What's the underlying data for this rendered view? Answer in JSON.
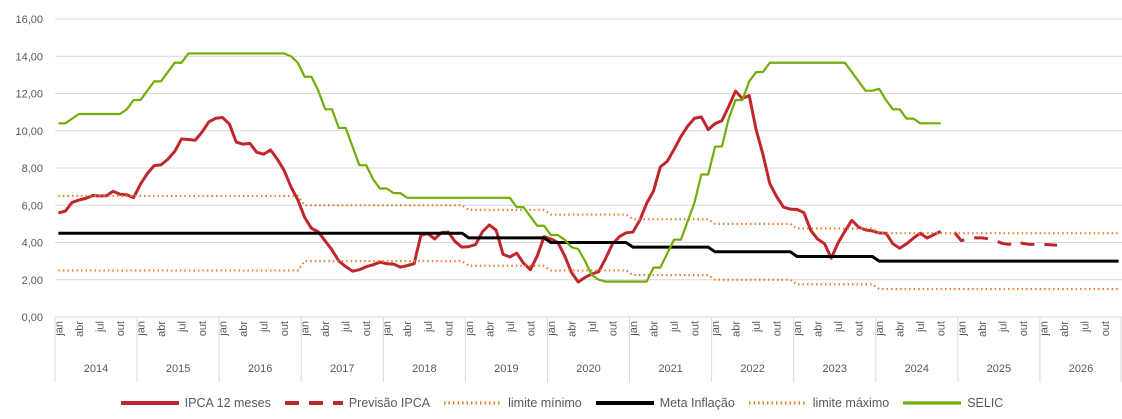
{
  "chart_data": {
    "type": "line",
    "categories": [
      "jan",
      null,
      null,
      "abr",
      null,
      null,
      "jul",
      null,
      null,
      "out",
      null,
      null,
      "jan",
      null,
      null,
      "abr",
      null,
      null,
      "jul",
      null,
      null,
      "out",
      null,
      null,
      "jan",
      null,
      null,
      "abr",
      null,
      null,
      "jul",
      null,
      null,
      "out",
      null,
      null,
      "jan",
      null,
      null,
      "abr",
      null,
      null,
      "jul",
      null,
      null,
      "out",
      null,
      null,
      "jan",
      null,
      null,
      "abr",
      null,
      null,
      "jul",
      null,
      null,
      "out",
      null,
      null,
      "jan",
      null,
      null,
      "abr",
      null,
      null,
      "jul",
      null,
      null,
      "out",
      null,
      null,
      "jan",
      null,
      null,
      "abr",
      null,
      null,
      "jul",
      null,
      null,
      "out",
      null,
      null,
      "jan",
      null,
      null,
      "abr",
      null,
      null,
      "jul",
      null,
      null,
      "out",
      null,
      null,
      "jan",
      null,
      null,
      "abr",
      null,
      null,
      "jul",
      null,
      null,
      "out",
      null,
      null,
      "jan",
      null,
      null,
      "abr",
      null,
      null,
      "jul",
      null,
      null,
      "out",
      null,
      null,
      "jan",
      null,
      null,
      "abr",
      null,
      null,
      "jul",
      null,
      null,
      "out",
      null,
      null,
      "jan",
      null,
      null,
      "abr",
      null,
      null,
      "jul",
      null,
      null,
      "out",
      null,
      null,
      "jan",
      null,
      null,
      "abr",
      null,
      null,
      "jul",
      null,
      null,
      "out",
      null,
      null
    ],
    "years": [
      "2014",
      "2015",
      "2016",
      "2017",
      "2018",
      "2019",
      "2020",
      "2021",
      "2022",
      "2023",
      "2024",
      "2025",
      "2026"
    ],
    "ylim": [
      0,
      16
    ],
    "yticks": [
      {
        "value": 0,
        "label": "0,00"
      },
      {
        "value": 2,
        "label": "2,00"
      },
      {
        "value": 4,
        "label": "4,00"
      },
      {
        "value": 6,
        "label": "6,00"
      },
      {
        "value": 8,
        "label": "8,00"
      },
      {
        "value": 10,
        "label": "10,00"
      },
      {
        "value": 12,
        "label": "12,00"
      },
      {
        "value": 14,
        "label": "14,00"
      },
      {
        "value": 16,
        "label": "16,00"
      }
    ],
    "grid": true,
    "legend": "bottom",
    "series": [
      {
        "name": "IPCA 12 meses",
        "color": "#c0262d",
        "dash": "solid",
        "values": [
          5.59,
          5.68,
          6.15,
          6.28,
          6.37,
          6.52,
          6.5,
          6.51,
          6.75,
          6.59,
          6.56,
          6.41,
          7.14,
          7.7,
          8.13,
          8.17,
          8.47,
          8.89,
          9.56,
          9.53,
          9.49,
          9.93,
          10.48,
          10.67,
          10.71,
          10.36,
          9.39,
          9.28,
          9.32,
          8.84,
          8.74,
          8.97,
          8.48,
          7.87,
          6.99,
          6.29,
          5.35,
          4.76,
          4.57,
          4.08,
          3.6,
          3.0,
          2.71,
          2.46,
          2.54,
          2.7,
          2.8,
          2.95,
          2.86,
          2.84,
          2.68,
          2.76,
          2.86,
          4.39,
          4.48,
          4.19,
          4.53,
          4.56,
          4.05,
          3.75,
          3.78,
          3.89,
          4.58,
          4.94,
          4.66,
          3.37,
          3.22,
          3.43,
          2.89,
          2.54,
          3.27,
          4.31,
          4.19,
          4.01,
          3.3,
          2.4,
          1.88,
          2.13,
          2.31,
          2.44,
          3.14,
          3.92,
          4.31,
          4.52,
          4.56,
          5.2,
          6.1,
          6.76,
          8.06,
          8.35,
          8.99,
          9.68,
          10.25,
          10.67,
          10.74,
          10.06,
          10.38,
          10.54,
          11.3,
          12.13,
          11.73,
          11.89,
          10.07,
          8.73,
          7.17,
          6.47,
          5.9,
          5.79,
          5.77,
          5.6,
          4.65,
          4.18,
          3.94,
          3.16,
          3.99,
          4.61,
          5.19,
          4.82,
          4.68,
          4.62,
          4.51,
          4.5,
          3.93,
          3.69,
          3.93,
          4.23,
          4.5,
          4.24,
          4.42,
          4.6,
          null,
          null,
          null,
          null,
          null,
          null,
          null,
          null,
          null,
          null,
          null,
          null,
          null,
          null,
          null,
          null,
          null,
          null,
          null,
          null,
          null,
          null,
          null,
          null,
          null,
          null
        ]
      },
      {
        "name": "Previsão IPCA",
        "color": "#c0262d",
        "dash": "dash",
        "values": [
          null,
          null,
          null,
          null,
          null,
          null,
          null,
          null,
          null,
          null,
          null,
          null,
          null,
          null,
          null,
          null,
          null,
          null,
          null,
          null,
          null,
          null,
          null,
          null,
          null,
          null,
          null,
          null,
          null,
          null,
          null,
          null,
          null,
          null,
          null,
          null,
          null,
          null,
          null,
          null,
          null,
          null,
          null,
          null,
          null,
          null,
          null,
          null,
          null,
          null,
          null,
          null,
          null,
          null,
          null,
          null,
          null,
          null,
          null,
          null,
          null,
          null,
          null,
          null,
          null,
          null,
          null,
          null,
          null,
          null,
          null,
          null,
          null,
          null,
          null,
          null,
          null,
          null,
          null,
          null,
          null,
          null,
          null,
          null,
          null,
          null,
          null,
          null,
          null,
          null,
          null,
          null,
          null,
          null,
          null,
          null,
          null,
          null,
          null,
          null,
          null,
          null,
          null,
          null,
          null,
          null,
          null,
          null,
          null,
          null,
          null,
          null,
          null,
          null,
          null,
          null,
          null,
          null,
          null,
          null,
          null,
          null,
          null,
          null,
          null,
          null,
          null,
          null,
          null,
          null,
          null,
          4.55,
          4.1,
          4.2,
          4.25,
          4.25,
          4.2,
          4.1,
          3.95,
          3.9,
          4.05,
          3.95,
          3.9,
          3.9,
          3.9,
          3.88,
          3.85,
          null,
          null,
          null,
          null,
          null,
          null,
          null,
          null,
          null
        ]
      },
      {
        "name": "limite mínimo",
        "color": "#ed7d31",
        "dash": "dot",
        "values": [
          2.5,
          2.5,
          2.5,
          2.5,
          2.5,
          2.5,
          2.5,
          2.5,
          2.5,
          2.5,
          2.5,
          2.5,
          2.5,
          2.5,
          2.5,
          2.5,
          2.5,
          2.5,
          2.5,
          2.5,
          2.5,
          2.5,
          2.5,
          2.5,
          2.5,
          2.5,
          2.5,
          2.5,
          2.5,
          2.5,
          2.5,
          2.5,
          2.5,
          2.5,
          2.5,
          2.5,
          3,
          3,
          3,
          3,
          3,
          3,
          3,
          3,
          3,
          3,
          3,
          3,
          3,
          3,
          3,
          3,
          3,
          3,
          3,
          3,
          3,
          3,
          3,
          3,
          2.75,
          2.75,
          2.75,
          2.75,
          2.75,
          2.75,
          2.75,
          2.75,
          2.75,
          2.75,
          2.75,
          2.75,
          2.5,
          2.5,
          2.5,
          2.5,
          2.5,
          2.5,
          2.5,
          2.5,
          2.5,
          2.5,
          2.5,
          2.5,
          2.25,
          2.25,
          2.25,
          2.25,
          2.25,
          2.25,
          2.25,
          2.25,
          2.25,
          2.25,
          2.25,
          2.25,
          2,
          2,
          2,
          2,
          2,
          2,
          2,
          2,
          2,
          2,
          2,
          2,
          1.75,
          1.75,
          1.75,
          1.75,
          1.75,
          1.75,
          1.75,
          1.75,
          1.75,
          1.75,
          1.75,
          1.75,
          1.5,
          1.5,
          1.5,
          1.5,
          1.5,
          1.5,
          1.5,
          1.5,
          1.5,
          1.5,
          1.5,
          1.5,
          1.5,
          1.5,
          1.5,
          1.5,
          1.5,
          1.5,
          1.5,
          1.5,
          1.5,
          1.5,
          1.5,
          1.5,
          1.5,
          1.5,
          1.5,
          1.5,
          1.5,
          1.5,
          1.5,
          1.5,
          1.5,
          1.5,
          1.5,
          1.5
        ]
      },
      {
        "name": "Meta Inflação",
        "color": "#000000",
        "dash": "solid",
        "values": [
          4.5,
          4.5,
          4.5,
          4.5,
          4.5,
          4.5,
          4.5,
          4.5,
          4.5,
          4.5,
          4.5,
          4.5,
          4.5,
          4.5,
          4.5,
          4.5,
          4.5,
          4.5,
          4.5,
          4.5,
          4.5,
          4.5,
          4.5,
          4.5,
          4.5,
          4.5,
          4.5,
          4.5,
          4.5,
          4.5,
          4.5,
          4.5,
          4.5,
          4.5,
          4.5,
          4.5,
          4.5,
          4.5,
          4.5,
          4.5,
          4.5,
          4.5,
          4.5,
          4.5,
          4.5,
          4.5,
          4.5,
          4.5,
          4.5,
          4.5,
          4.5,
          4.5,
          4.5,
          4.5,
          4.5,
          4.5,
          4.5,
          4.5,
          4.5,
          4.5,
          4.25,
          4.25,
          4.25,
          4.25,
          4.25,
          4.25,
          4.25,
          4.25,
          4.25,
          4.25,
          4.25,
          4.25,
          4,
          4,
          4,
          4,
          4,
          4,
          4,
          4,
          4,
          4,
          4,
          4,
          3.75,
          3.75,
          3.75,
          3.75,
          3.75,
          3.75,
          3.75,
          3.75,
          3.75,
          3.75,
          3.75,
          3.75,
          3.5,
          3.5,
          3.5,
          3.5,
          3.5,
          3.5,
          3.5,
          3.5,
          3.5,
          3.5,
          3.5,
          3.5,
          3.25,
          3.25,
          3.25,
          3.25,
          3.25,
          3.25,
          3.25,
          3.25,
          3.25,
          3.25,
          3.25,
          3.25,
          3,
          3,
          3,
          3,
          3,
          3,
          3,
          3,
          3,
          3,
          3,
          3,
          3,
          3,
          3,
          3,
          3,
          3,
          3,
          3,
          3,
          3,
          3,
          3,
          3,
          3,
          3,
          3,
          3,
          3,
          3,
          3,
          3,
          3,
          3,
          3
        ]
      },
      {
        "name": "limite máximo",
        "color": "#ed7d31",
        "dash": "dot",
        "values": [
          6.5,
          6.5,
          6.5,
          6.5,
          6.5,
          6.5,
          6.5,
          6.5,
          6.5,
          6.5,
          6.5,
          6.5,
          6.5,
          6.5,
          6.5,
          6.5,
          6.5,
          6.5,
          6.5,
          6.5,
          6.5,
          6.5,
          6.5,
          6.5,
          6.5,
          6.5,
          6.5,
          6.5,
          6.5,
          6.5,
          6.5,
          6.5,
          6.5,
          6.5,
          6.5,
          6.5,
          6,
          6,
          6,
          6,
          6,
          6,
          6,
          6,
          6,
          6,
          6,
          6,
          6,
          6,
          6,
          6,
          6,
          6,
          6,
          6,
          6,
          6,
          6,
          6,
          5.75,
          5.75,
          5.75,
          5.75,
          5.75,
          5.75,
          5.75,
          5.75,
          5.75,
          5.75,
          5.75,
          5.75,
          5.5,
          5.5,
          5.5,
          5.5,
          5.5,
          5.5,
          5.5,
          5.5,
          5.5,
          5.5,
          5.5,
          5.5,
          5.25,
          5.25,
          5.25,
          5.25,
          5.25,
          5.25,
          5.25,
          5.25,
          5.25,
          5.25,
          5.25,
          5.25,
          5,
          5,
          5,
          5,
          5,
          5,
          5,
          5,
          5,
          5,
          5,
          5,
          4.75,
          4.75,
          4.75,
          4.75,
          4.75,
          4.75,
          4.75,
          4.75,
          4.75,
          4.75,
          4.75,
          4.75,
          4.5,
          4.5,
          4.5,
          4.5,
          4.5,
          4.5,
          4.5,
          4.5,
          4.5,
          4.5,
          4.5,
          4.5,
          4.5,
          4.5,
          4.5,
          4.5,
          4.5,
          4.5,
          4.5,
          4.5,
          4.5,
          4.5,
          4.5,
          4.5,
          4.5,
          4.5,
          4.5,
          4.5,
          4.5,
          4.5,
          4.5,
          4.5,
          4.5,
          4.5,
          4.5,
          4.5
        ]
      },
      {
        "name": "SELIC",
        "color": "#70ad07",
        "dash": "solid",
        "values": [
          10.4,
          10.4,
          10.65,
          10.9,
          10.9,
          10.9,
          10.9,
          10.9,
          10.9,
          10.9,
          11.15,
          11.65,
          11.65,
          12.15,
          12.65,
          12.65,
          13.15,
          13.65,
          13.65,
          14.15,
          14.15,
          14.15,
          14.15,
          14.15,
          14.15,
          14.15,
          14.15,
          14.15,
          14.15,
          14.15,
          14.15,
          14.15,
          14.15,
          14.15,
          14.0,
          13.65,
          12.9,
          12.9,
          12.15,
          11.15,
          11.15,
          10.15,
          10.15,
          9.15,
          8.15,
          8.15,
          7.4,
          6.9,
          6.9,
          6.65,
          6.65,
          6.4,
          6.4,
          6.4,
          6.4,
          6.4,
          6.4,
          6.4,
          6.4,
          6.4,
          6.4,
          6.4,
          6.4,
          6.4,
          6.4,
          6.4,
          6.4,
          5.9,
          5.9,
          5.4,
          4.9,
          4.9,
          4.4,
          4.4,
          4.15,
          3.75,
          3.65,
          3.0,
          2.25,
          2.0,
          1.9,
          1.9,
          1.9,
          1.9,
          1.9,
          1.9,
          1.9,
          2.65,
          2.65,
          3.4,
          4.15,
          4.15,
          5.15,
          6.15,
          7.65,
          7.65,
          9.15,
          9.15,
          10.65,
          11.65,
          11.65,
          12.65,
          13.15,
          13.15,
          13.65,
          13.65,
          13.65,
          13.65,
          13.65,
          13.65,
          13.65,
          13.65,
          13.65,
          13.65,
          13.65,
          13.65,
          13.15,
          12.65,
          12.15,
          12.15,
          12.25,
          11.65,
          11.15,
          11.15,
          10.65,
          10.65,
          10.4,
          10.4,
          10.4,
          10.4,
          null,
          null,
          null,
          null,
          null,
          null,
          null,
          null,
          null,
          null,
          null,
          null,
          null,
          null,
          null,
          null,
          null,
          null,
          null,
          null,
          null,
          null,
          null,
          null,
          null,
          null
        ]
      }
    ]
  }
}
